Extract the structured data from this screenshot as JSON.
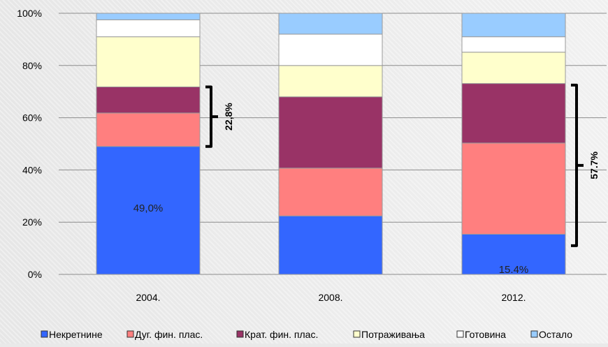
{
  "chart_data": {
    "type": "bar",
    "stacked": true,
    "categories": [
      "2004.",
      "2008.",
      "2012."
    ],
    "series": [
      {
        "name": "Некретнине",
        "color": "#3366ff",
        "values": [
          49.0,
          22.4,
          15.4
        ]
      },
      {
        "name": "Дуг. фин. плас.",
        "color": "#ff7f7f",
        "values": [
          12.8,
          18.3,
          34.9
        ]
      },
      {
        "name": "Крат. фин. плас.",
        "color": "#993366",
        "values": [
          10.0,
          27.3,
          22.8
        ]
      },
      {
        "name": "Потраживања",
        "color": "#ffffcc",
        "values": [
          19.2,
          12.0,
          12.0
        ]
      },
      {
        "name": "Готовина",
        "color": "#ffffff",
        "values": [
          6.5,
          12.0,
          5.9
        ]
      },
      {
        "name": "Остало",
        "color": "#99ccff",
        "values": [
          2.5,
          8.0,
          9.0
        ]
      }
    ],
    "ylim": [
      0,
      100
    ],
    "yticks": [
      "0%",
      "20%",
      "40%",
      "60%",
      "80%",
      "100%"
    ],
    "grid": true,
    "legend_position": "bottom",
    "data_labels": [
      {
        "category": "2004.",
        "text": "49,0%"
      },
      {
        "category": "2012.",
        "text": "15.4%"
      }
    ],
    "annotations": [
      {
        "category": "2004.",
        "text": "22,8%",
        "range": [
          49.0,
          71.8
        ]
      },
      {
        "category": "2012.",
        "text": "57.7%",
        "range": [
          11.0,
          72.5
        ]
      }
    ]
  }
}
